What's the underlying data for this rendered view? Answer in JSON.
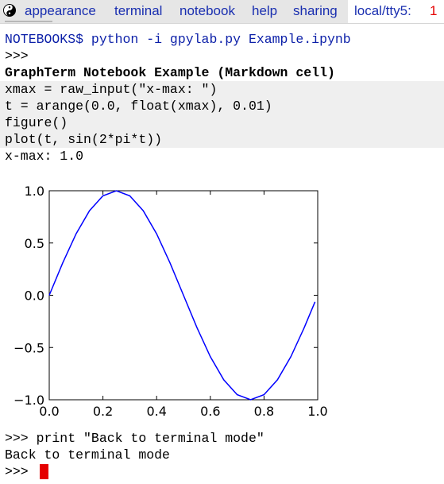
{
  "menubar": {
    "items": [
      "appearance",
      "terminal",
      "notebook",
      "help",
      "sharing"
    ],
    "tty_label": "local/tty5:",
    "tty_number": "1",
    "tty_number_color": "#e50000",
    "menu_color": "#1a2fb0",
    "logo_icon": "yin-yang-icon"
  },
  "terminal": {
    "command_line": "NOTEBOOKS$ python -i gpylab.py Example.ipynb",
    "prompt_line": ">>>",
    "markdown_heading": "GraphTerm Notebook Example (Markdown cell)",
    "code_lines": [
      "xmax = raw_input(\"x-max: \")",
      "t = arange(0.0, float(xmax), 0.01)",
      "figure()",
      "plot(t, sin(2*pi*t))"
    ],
    "input_echo": "x-max: 1.0",
    "print_command": ">>> print \"Back to terminal mode\"",
    "print_output": "Back to terminal mode",
    "final_prompt": ">>>",
    "cursor_color": "#e50000"
  },
  "chart_data": {
    "type": "line",
    "function": "sin(2*pi*t)",
    "xlim": [
      0.0,
      1.0
    ],
    "ylim": [
      -1.0,
      1.0
    ],
    "xticks": [
      "0.0",
      "0.2",
      "0.4",
      "0.6",
      "0.8",
      "1.0"
    ],
    "yticks": [
      "1.0",
      "0.5",
      "0.0",
      "−0.5",
      "−1.0"
    ],
    "line_color": "#0000ff",
    "grid": false,
    "legend": "none",
    "series": [
      {
        "x": [
          0.0,
          0.05,
          0.1,
          0.15,
          0.2,
          0.25,
          0.3,
          0.35,
          0.4,
          0.45,
          0.5,
          0.55,
          0.6,
          0.65,
          0.7,
          0.75,
          0.8,
          0.85,
          0.9,
          0.95,
          0.99
        ],
        "values": [
          0.0,
          0.309,
          0.588,
          0.809,
          0.951,
          1.0,
          0.951,
          0.809,
          0.588,
          0.309,
          0.0,
          -0.309,
          -0.588,
          -0.809,
          -0.951,
          -1.0,
          -0.951,
          -0.809,
          -0.588,
          -0.309,
          -0.063
        ]
      }
    ]
  }
}
